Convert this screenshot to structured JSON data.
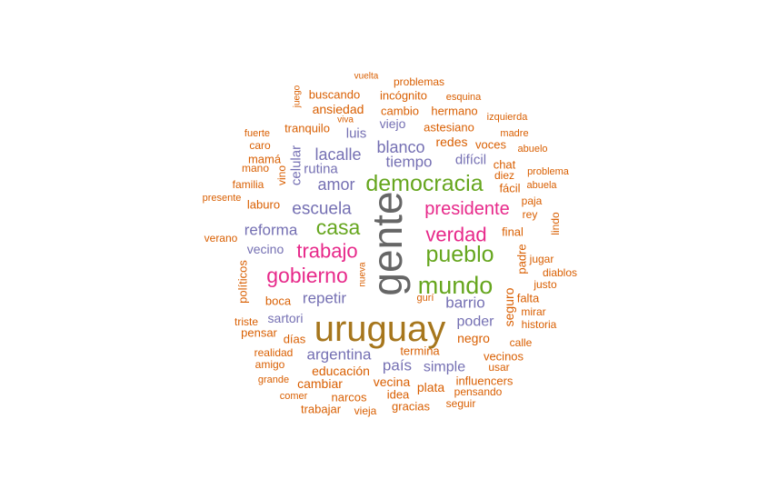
{
  "palette": {
    "orange": "#d95f02",
    "purple": "#7570b3",
    "magenta": "#e7298a",
    "green": "#66a61e",
    "gold": "#a6761d",
    "gray": "#666666"
  },
  "words": [
    {
      "text": "gente",
      "group": "gray"
    },
    {
      "text": "uruguay",
      "group": "gold"
    },
    {
      "text": "democracia",
      "group": "green"
    },
    {
      "text": "mundo",
      "group": "green"
    },
    {
      "text": "pueblo",
      "group": "green"
    },
    {
      "text": "casa",
      "group": "green"
    },
    {
      "text": "presidente",
      "group": "magenta"
    },
    {
      "text": "gobierno",
      "group": "magenta"
    },
    {
      "text": "trabajo",
      "group": "magenta"
    },
    {
      "text": "verdad",
      "group": "magenta"
    },
    {
      "text": "escuela",
      "group": "purple"
    },
    {
      "text": "amor",
      "group": "purple"
    },
    {
      "text": "lacalle",
      "group": "purple"
    },
    {
      "text": "blanco",
      "group": "purple"
    },
    {
      "text": "tiempo",
      "group": "purple"
    },
    {
      "text": "reforma",
      "group": "purple"
    },
    {
      "text": "repetir",
      "group": "purple"
    },
    {
      "text": "barrio",
      "group": "purple"
    },
    {
      "text": "argentina",
      "group": "purple"
    },
    {
      "text": "poder",
      "group": "purple"
    },
    {
      "text": "país",
      "group": "purple"
    },
    {
      "text": "simple",
      "group": "purple"
    },
    {
      "text": "rutina",
      "group": "purple"
    },
    {
      "text": "celular",
      "group": "purple"
    },
    {
      "text": "luis",
      "group": "purple"
    },
    {
      "text": "viejo",
      "group": "purple"
    },
    {
      "text": "difícil",
      "group": "purple"
    },
    {
      "text": "vecino",
      "group": "purple"
    },
    {
      "text": "sartori",
      "group": "purple"
    },
    {
      "text": "negro",
      "group": "orange"
    },
    {
      "text": "redes",
      "group": "orange"
    },
    {
      "text": "astesiano",
      "group": "orange"
    },
    {
      "text": "incógnito",
      "group": "orange"
    },
    {
      "text": "ansiedad",
      "group": "orange"
    },
    {
      "text": "buscando",
      "group": "orange"
    },
    {
      "text": "problemas",
      "group": "orange"
    },
    {
      "text": "vuelta",
      "group": "orange"
    },
    {
      "text": "juego",
      "group": "orange"
    },
    {
      "text": "esquina",
      "group": "orange"
    },
    {
      "text": "cambio",
      "group": "orange"
    },
    {
      "text": "hermano",
      "group": "orange"
    },
    {
      "text": "izquierda",
      "group": "orange"
    },
    {
      "text": "tranquilo",
      "group": "orange"
    },
    {
      "text": "viva",
      "group": "orange"
    },
    {
      "text": "madre",
      "group": "orange"
    },
    {
      "text": "fuerte",
      "group": "orange"
    },
    {
      "text": "caro",
      "group": "orange"
    },
    {
      "text": "voces",
      "group": "orange"
    },
    {
      "text": "abuelo",
      "group": "orange"
    },
    {
      "text": "mamá",
      "group": "orange"
    },
    {
      "text": "chat",
      "group": "orange"
    },
    {
      "text": "mano",
      "group": "orange"
    },
    {
      "text": "vino",
      "group": "orange"
    },
    {
      "text": "diez",
      "group": "orange"
    },
    {
      "text": "problema",
      "group": "orange"
    },
    {
      "text": "familia",
      "group": "orange"
    },
    {
      "text": "fácil",
      "group": "orange"
    },
    {
      "text": "abuela",
      "group": "orange"
    },
    {
      "text": "presente",
      "group": "orange"
    },
    {
      "text": "laburo",
      "group": "orange"
    },
    {
      "text": "paja",
      "group": "orange"
    },
    {
      "text": "rey",
      "group": "orange"
    },
    {
      "text": "lindo",
      "group": "orange"
    },
    {
      "text": "final",
      "group": "orange"
    },
    {
      "text": "verano",
      "group": "orange"
    },
    {
      "text": "jugar",
      "group": "orange"
    },
    {
      "text": "padre",
      "group": "orange"
    },
    {
      "text": "diablos",
      "group": "orange"
    },
    {
      "text": "políticos",
      "group": "orange"
    },
    {
      "text": "nueva",
      "group": "orange"
    },
    {
      "text": "justo",
      "group": "orange"
    },
    {
      "text": "boca",
      "group": "orange"
    },
    {
      "text": "gurí",
      "group": "orange"
    },
    {
      "text": "falta",
      "group": "orange"
    },
    {
      "text": "seguro",
      "group": "orange"
    },
    {
      "text": "mirar",
      "group": "orange"
    },
    {
      "text": "triste",
      "group": "orange"
    },
    {
      "text": "historia",
      "group": "orange"
    },
    {
      "text": "pensar",
      "group": "orange"
    },
    {
      "text": "días",
      "group": "orange"
    },
    {
      "text": "calle",
      "group": "orange"
    },
    {
      "text": "realidad",
      "group": "orange"
    },
    {
      "text": "termina",
      "group": "orange"
    },
    {
      "text": "vecinos",
      "group": "orange"
    },
    {
      "text": "amigo",
      "group": "orange"
    },
    {
      "text": "usar",
      "group": "orange"
    },
    {
      "text": "educación",
      "group": "orange"
    },
    {
      "text": "grande",
      "group": "orange"
    },
    {
      "text": "cambiar",
      "group": "orange"
    },
    {
      "text": "vecina",
      "group": "orange"
    },
    {
      "text": "influencers",
      "group": "orange"
    },
    {
      "text": "plata",
      "group": "orange"
    },
    {
      "text": "comer",
      "group": "orange"
    },
    {
      "text": "narcos",
      "group": "orange"
    },
    {
      "text": "idea",
      "group": "orange"
    },
    {
      "text": "pensando",
      "group": "orange"
    },
    {
      "text": "trabajar",
      "group": "orange"
    },
    {
      "text": "vieja",
      "group": "orange"
    },
    {
      "text": "gracias",
      "group": "orange"
    },
    {
      "text": "seguir",
      "group": "orange"
    }
  ]
}
